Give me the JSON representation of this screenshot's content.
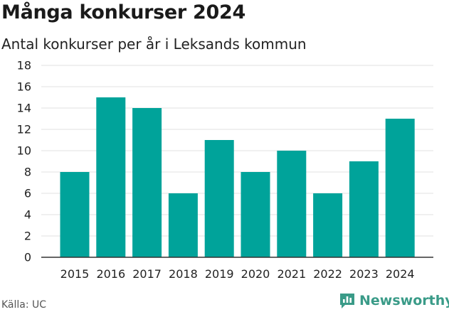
{
  "header": {
    "title": "Många konkurser 2024",
    "subtitle": "Antal konkurser per år i Leksands kommun"
  },
  "footer": {
    "source": "Källa: UC",
    "brand": "Newsworthy"
  },
  "colors": {
    "bar": "#00a39a",
    "brand": "#3a9b88",
    "grid": "#e2e2e2",
    "axis": "#333333"
  },
  "chart_data": {
    "type": "bar",
    "categories": [
      "2015",
      "2016",
      "2017",
      "2018",
      "2019",
      "2020",
      "2021",
      "2022",
      "2023",
      "2024"
    ],
    "values": [
      8,
      15,
      14,
      6,
      11,
      8,
      10,
      6,
      9,
      13
    ],
    "title": "Många konkurser 2024",
    "subtitle": "Antal konkurser per år i Leksands kommun",
    "xlabel": "",
    "ylabel": "",
    "ylim": [
      0,
      18
    ],
    "yticks": [
      0,
      2,
      4,
      6,
      8,
      10,
      12,
      14,
      16,
      18
    ],
    "grid": true,
    "legend": "none"
  }
}
